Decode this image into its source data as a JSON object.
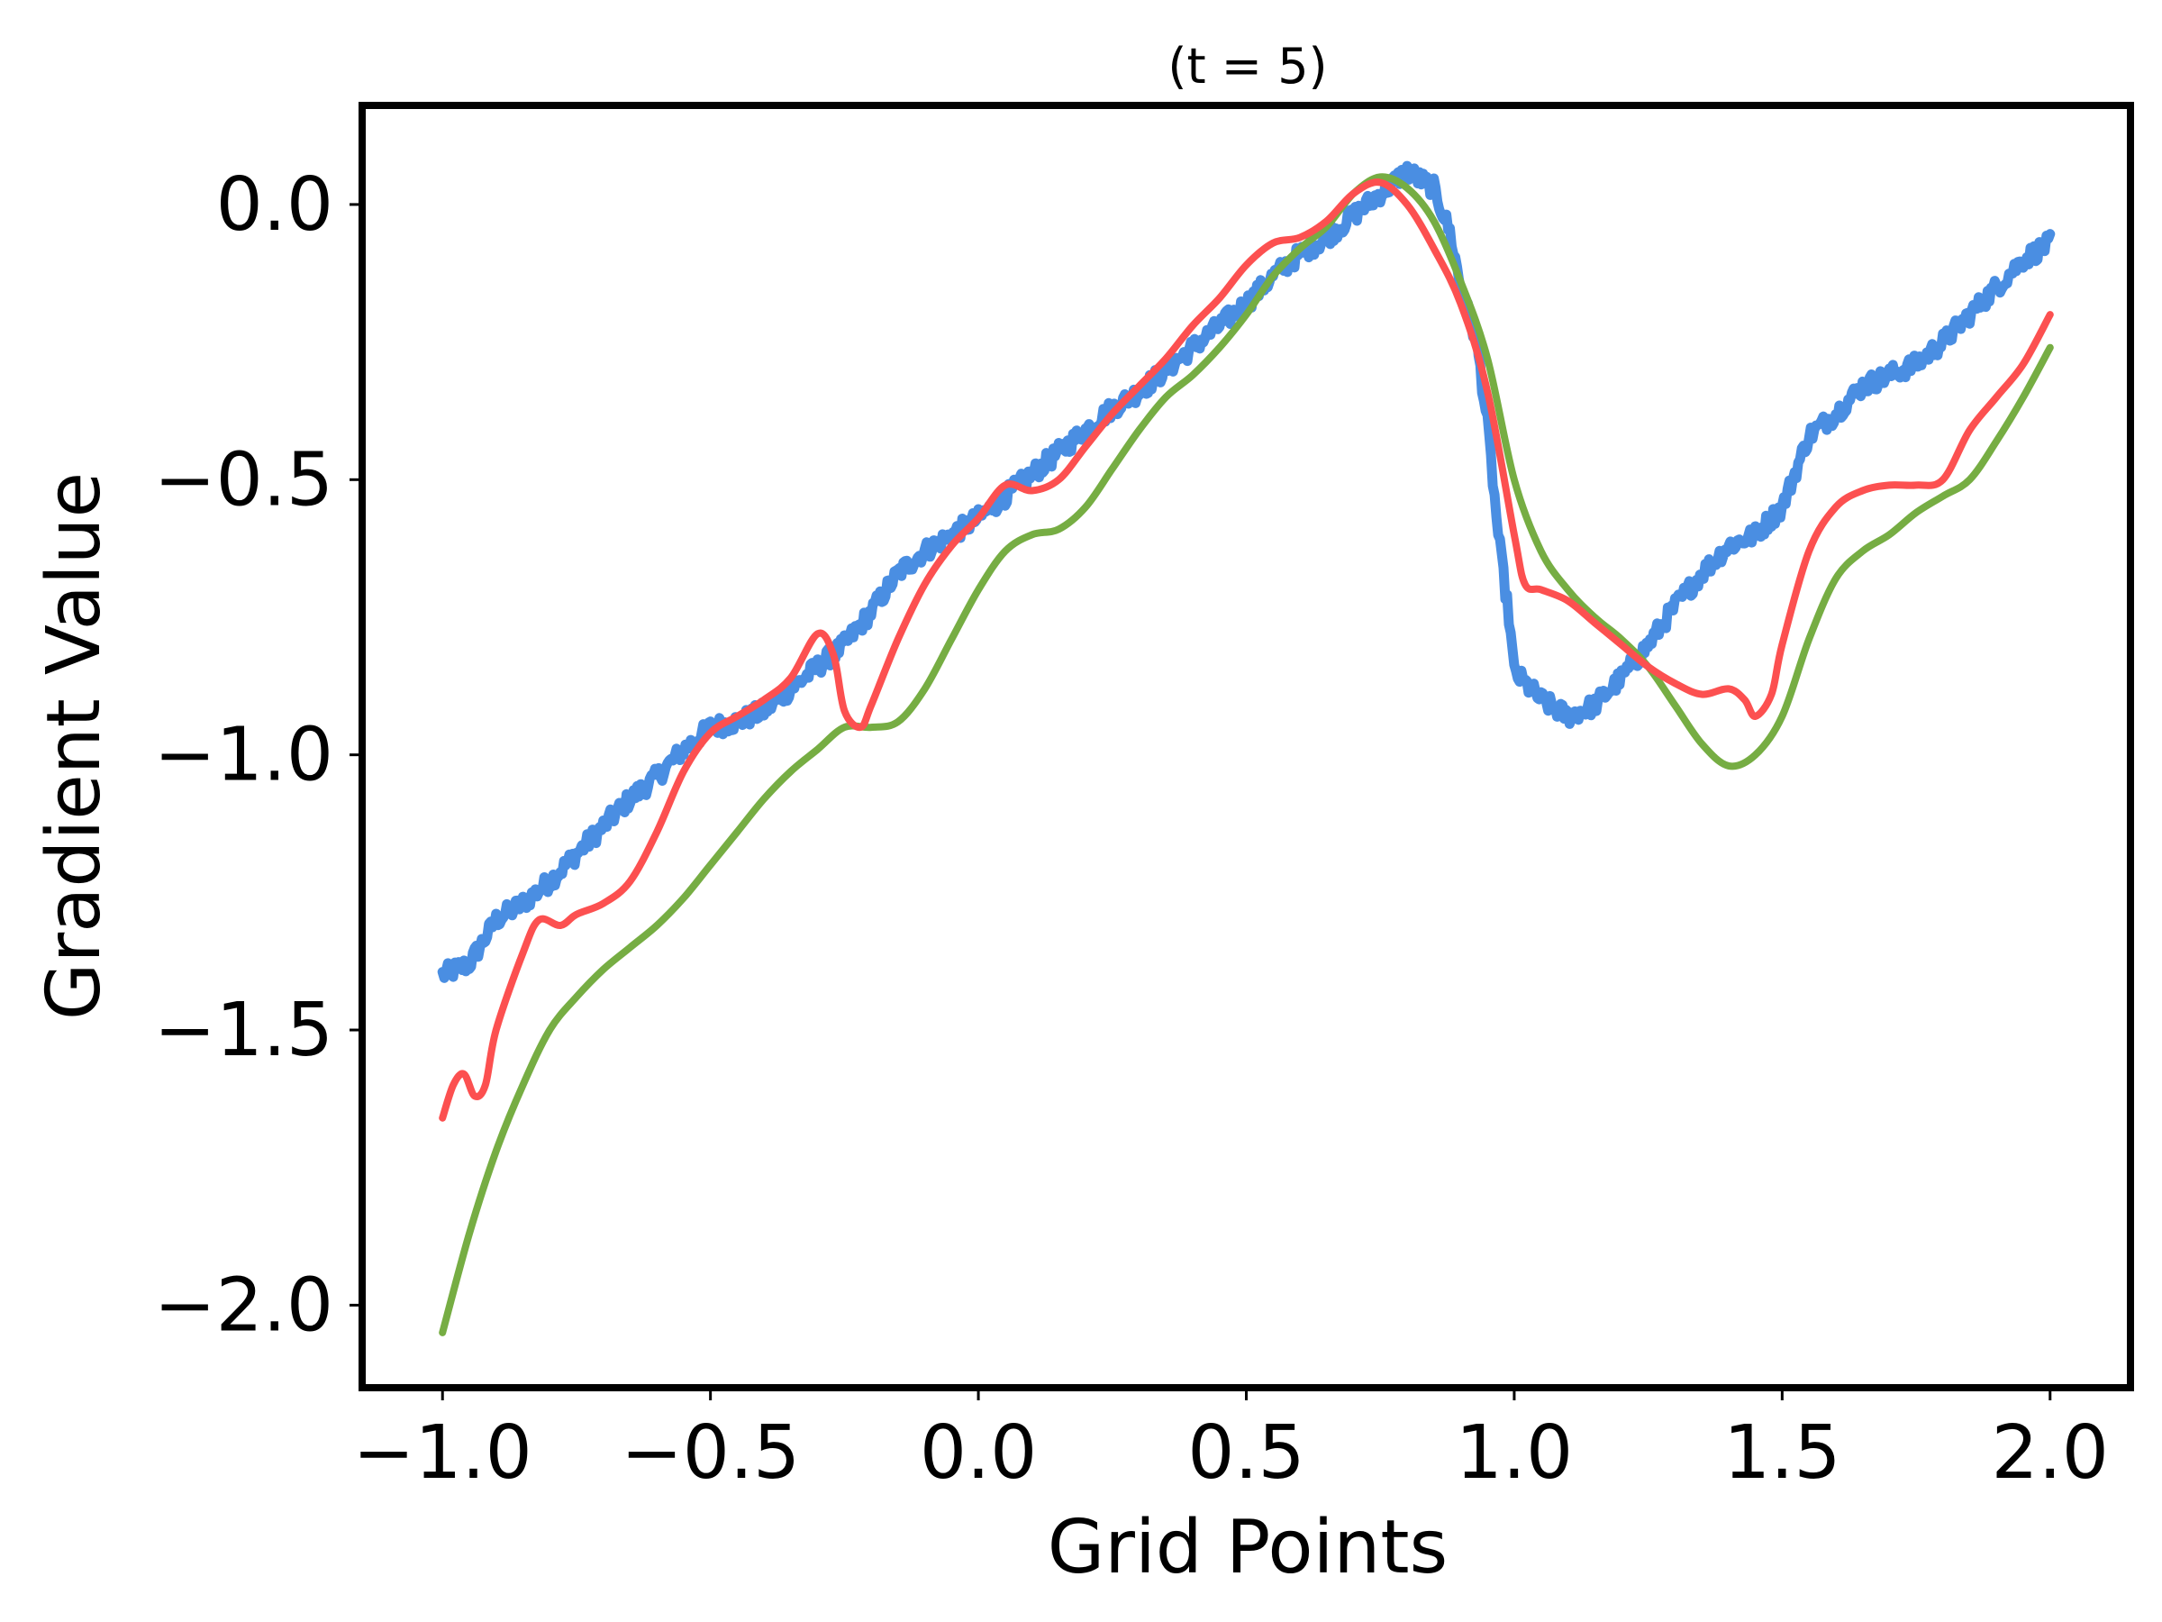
{
  "chart_data": {
    "type": "line",
    "title": "(t = 5)",
    "xlabel": "Grid Points",
    "ylabel": "Gradient Value",
    "xlim": [
      -1.15,
      2.15
    ],
    "ylim": [
      -2.15,
      0.18
    ],
    "xticks": [
      -1.0,
      -0.5,
      0.0,
      0.5,
      1.0,
      1.5,
      2.0
    ],
    "xtick_labels": [
      "−1.0",
      "−0.5",
      "0.0",
      "0.5",
      "1.0",
      "1.5",
      "2.0"
    ],
    "yticks": [
      0.0,
      -0.5,
      -1.0,
      -1.5,
      -2.0
    ],
    "ytick_labels": [
      "0.0",
      "−0.5",
      "−1.0",
      "−1.5",
      "−2.0"
    ],
    "grid": false,
    "legend": "none",
    "series": [
      {
        "color": "#4a8ee2",
        "noisy": true,
        "points": [
          [
            -1.0,
            -1.4
          ],
          [
            -0.95,
            -1.38
          ],
          [
            -0.9,
            -1.3
          ],
          [
            -0.85,
            -1.27
          ],
          [
            -0.8,
            -1.23
          ],
          [
            -0.75,
            -1.18
          ],
          [
            -0.7,
            -1.13
          ],
          [
            -0.65,
            -1.08
          ],
          [
            -0.6,
            -1.04
          ],
          [
            -0.55,
            -0.99
          ],
          [
            -0.5,
            -0.95
          ],
          [
            -0.45,
            -0.94
          ],
          [
            -0.4,
            -0.92
          ],
          [
            -0.35,
            -0.88
          ],
          [
            -0.3,
            -0.84
          ],
          [
            -0.25,
            -0.8
          ],
          [
            -0.2,
            -0.74
          ],
          [
            -0.15,
            -0.67
          ],
          [
            -0.1,
            -0.63
          ],
          [
            -0.05,
            -0.6
          ],
          [
            0.0,
            -0.57
          ],
          [
            0.05,
            -0.53
          ],
          [
            0.1,
            -0.49
          ],
          [
            0.15,
            -0.45
          ],
          [
            0.2,
            -0.41
          ],
          [
            0.25,
            -0.37
          ],
          [
            0.3,
            -0.34
          ],
          [
            0.35,
            -0.3
          ],
          [
            0.4,
            -0.26
          ],
          [
            0.45,
            -0.22
          ],
          [
            0.5,
            -0.18
          ],
          [
            0.55,
            -0.13
          ],
          [
            0.6,
            -0.09
          ],
          [
            0.65,
            -0.06
          ],
          [
            0.7,
            -0.02
          ],
          [
            0.75,
            0.02
          ],
          [
            0.8,
            0.06
          ],
          [
            0.85,
            0.03
          ],
          [
            0.88,
            -0.05
          ],
          [
            0.9,
            -0.15
          ],
          [
            0.93,
            -0.25
          ],
          [
            0.95,
            -0.4
          ],
          [
            0.97,
            -0.6
          ],
          [
            0.99,
            -0.75
          ],
          [
            1.0,
            -0.85
          ],
          [
            1.05,
            -0.9
          ],
          [
            1.1,
            -0.93
          ],
          [
            1.15,
            -0.91
          ],
          [
            1.2,
            -0.86
          ],
          [
            1.25,
            -0.8
          ],
          [
            1.3,
            -0.73
          ],
          [
            1.35,
            -0.67
          ],
          [
            1.4,
            -0.62
          ],
          [
            1.45,
            -0.6
          ],
          [
            1.5,
            -0.55
          ],
          [
            1.55,
            -0.42
          ],
          [
            1.6,
            -0.38
          ],
          [
            1.65,
            -0.33
          ],
          [
            1.7,
            -0.31
          ],
          [
            1.75,
            -0.29
          ],
          [
            1.8,
            -0.25
          ],
          [
            1.85,
            -0.2
          ],
          [
            1.9,
            -0.15
          ],
          [
            1.95,
            -0.1
          ],
          [
            2.0,
            -0.07
          ]
        ]
      },
      {
        "color": "#76ad43",
        "noisy": false,
        "points": [
          [
            -1.0,
            -2.05
          ],
          [
            -0.95,
            -1.87
          ],
          [
            -0.9,
            -1.72
          ],
          [
            -0.85,
            -1.6
          ],
          [
            -0.8,
            -1.5
          ],
          [
            -0.75,
            -1.44
          ],
          [
            -0.7,
            -1.39
          ],
          [
            -0.65,
            -1.35
          ],
          [
            -0.6,
            -1.31
          ],
          [
            -0.55,
            -1.26
          ],
          [
            -0.5,
            -1.2
          ],
          [
            -0.45,
            -1.14
          ],
          [
            -0.4,
            -1.08
          ],
          [
            -0.35,
            -1.03
          ],
          [
            -0.3,
            -0.99
          ],
          [
            -0.25,
            -0.95
          ],
          [
            -0.2,
            -0.95
          ],
          [
            -0.15,
            -0.94
          ],
          [
            -0.1,
            -0.88
          ],
          [
            -0.05,
            -0.79
          ],
          [
            0.0,
            -0.7
          ],
          [
            0.05,
            -0.63
          ],
          [
            0.1,
            -0.6
          ],
          [
            0.15,
            -0.59
          ],
          [
            0.2,
            -0.55
          ],
          [
            0.25,
            -0.48
          ],
          [
            0.3,
            -0.41
          ],
          [
            0.35,
            -0.35
          ],
          [
            0.4,
            -0.31
          ],
          [
            0.45,
            -0.26
          ],
          [
            0.5,
            -0.2
          ],
          [
            0.55,
            -0.13
          ],
          [
            0.6,
            -0.08
          ],
          [
            0.65,
            -0.04
          ],
          [
            0.7,
            0.02
          ],
          [
            0.75,
            0.05
          ],
          [
            0.8,
            0.03
          ],
          [
            0.85,
            -0.03
          ],
          [
            0.9,
            -0.14
          ],
          [
            0.95,
            -0.28
          ],
          [
            1.0,
            -0.5
          ],
          [
            1.05,
            -0.63
          ],
          [
            1.1,
            -0.7
          ],
          [
            1.15,
            -0.75
          ],
          [
            1.2,
            -0.79
          ],
          [
            1.25,
            -0.84
          ],
          [
            1.3,
            -0.91
          ],
          [
            1.35,
            -0.98
          ],
          [
            1.4,
            -1.02
          ],
          [
            1.45,
            -1.0
          ],
          [
            1.5,
            -0.93
          ],
          [
            1.55,
            -0.79
          ],
          [
            1.6,
            -0.68
          ],
          [
            1.65,
            -0.63
          ],
          [
            1.7,
            -0.6
          ],
          [
            1.75,
            -0.56
          ],
          [
            1.8,
            -0.53
          ],
          [
            1.85,
            -0.5
          ],
          [
            1.9,
            -0.43
          ],
          [
            1.95,
            -0.35
          ],
          [
            2.0,
            -0.26
          ]
        ]
      },
      {
        "color": "#fc5050",
        "noisy": false,
        "points": [
          [
            -1.0,
            -1.66
          ],
          [
            -0.98,
            -1.6
          ],
          [
            -0.96,
            -1.58
          ],
          [
            -0.94,
            -1.62
          ],
          [
            -0.92,
            -1.6
          ],
          [
            -0.9,
            -1.5
          ],
          [
            -0.85,
            -1.36
          ],
          [
            -0.82,
            -1.3
          ],
          [
            -0.78,
            -1.31
          ],
          [
            -0.75,
            -1.29
          ],
          [
            -0.7,
            -1.27
          ],
          [
            -0.65,
            -1.23
          ],
          [
            -0.6,
            -1.14
          ],
          [
            -0.55,
            -1.03
          ],
          [
            -0.5,
            -0.96
          ],
          [
            -0.45,
            -0.93
          ],
          [
            -0.4,
            -0.9
          ],
          [
            -0.35,
            -0.86
          ],
          [
            -0.3,
            -0.78
          ],
          [
            -0.27,
            -0.82
          ],
          [
            -0.25,
            -0.92
          ],
          [
            -0.22,
            -0.95
          ],
          [
            -0.2,
            -0.91
          ],
          [
            -0.15,
            -0.79
          ],
          [
            -0.1,
            -0.69
          ],
          [
            -0.05,
            -0.62
          ],
          [
            0.0,
            -0.57
          ],
          [
            0.05,
            -0.51
          ],
          [
            0.1,
            -0.52
          ],
          [
            0.15,
            -0.5
          ],
          [
            0.2,
            -0.44
          ],
          [
            0.25,
            -0.38
          ],
          [
            0.3,
            -0.33
          ],
          [
            0.35,
            -0.28
          ],
          [
            0.4,
            -0.22
          ],
          [
            0.45,
            -0.17
          ],
          [
            0.5,
            -0.11
          ],
          [
            0.55,
            -0.07
          ],
          [
            0.6,
            -0.06
          ],
          [
            0.65,
            -0.03
          ],
          [
            0.7,
            0.02
          ],
          [
            0.75,
            0.04
          ],
          [
            0.8,
            0.0
          ],
          [
            0.85,
            -0.08
          ],
          [
            0.9,
            -0.18
          ],
          [
            0.95,
            -0.34
          ],
          [
            1.0,
            -0.6
          ],
          [
            1.02,
            -0.69
          ],
          [
            1.05,
            -0.7
          ],
          [
            1.1,
            -0.72
          ],
          [
            1.15,
            -0.76
          ],
          [
            1.2,
            -0.8
          ],
          [
            1.25,
            -0.84
          ],
          [
            1.3,
            -0.87
          ],
          [
            1.35,
            -0.89
          ],
          [
            1.4,
            -0.88
          ],
          [
            1.43,
            -0.9
          ],
          [
            1.45,
            -0.93
          ],
          [
            1.48,
            -0.89
          ],
          [
            1.5,
            -0.8
          ],
          [
            1.55,
            -0.63
          ],
          [
            1.6,
            -0.55
          ],
          [
            1.65,
            -0.52
          ],
          [
            1.7,
            -0.51
          ],
          [
            1.75,
            -0.51
          ],
          [
            1.8,
            -0.5
          ],
          [
            1.85,
            -0.41
          ],
          [
            1.9,
            -0.35
          ],
          [
            1.95,
            -0.29
          ],
          [
            2.0,
            -0.2
          ]
        ]
      }
    ]
  }
}
